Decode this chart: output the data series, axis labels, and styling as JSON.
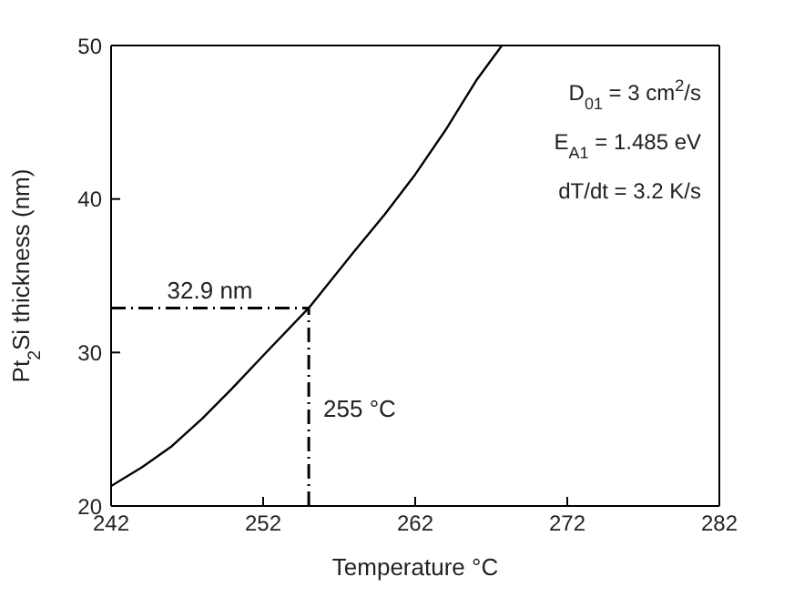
{
  "chart_data": {
    "type": "line",
    "xlabel": "Temperature °C",
    "ylabel": "Pt$_{2}$Si thickness (nm)",
    "x": [
      242,
      244,
      246,
      248,
      250,
      252,
      255,
      258,
      260,
      262,
      264,
      266,
      267.7
    ],
    "series": [
      {
        "color": "#000000",
        "values": [
          21.3,
          22.5,
          23.9,
          25.7,
          27.7,
          29.8,
          32.9,
          36.6,
          39.0,
          41.6,
          44.5,
          47.7,
          50
        ]
      }
    ],
    "xlim": [
      242,
      282
    ],
    "xticks": [
      242,
      252,
      262,
      272,
      282
    ],
    "ylim": [
      20,
      50
    ],
    "yticks": [
      20,
      30,
      40,
      50
    ],
    "grid": false,
    "legend": false,
    "marker": "none",
    "line_style": "solid",
    "ref_lines": [
      {
        "axis": "y",
        "value": 32.9,
        "label": "32.9 nm",
        "color": "#000000",
        "line_style": "dashed"
      },
      {
        "axis": "x",
        "value": 255,
        "label": "255 °C",
        "color": "#000000",
        "line_style": "dashed"
      }
    ],
    "annotations": [
      "D$_{01}$ = 3 cm$^{2}$/s",
      "E$_{A1}$ = 1.485 eV",
      "dT/dt = 3.2 K/s"
    ]
  }
}
